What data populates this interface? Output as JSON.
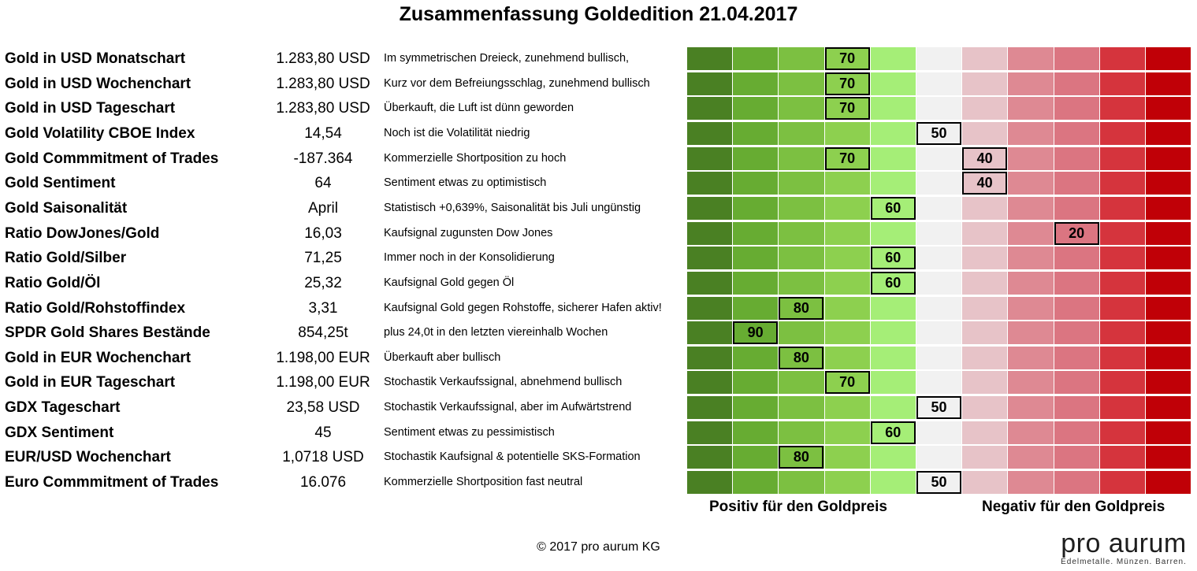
{
  "title": "Zusammenfassung Goldedition 21.04.2017",
  "colors": {
    "scale": [
      "#4a8023",
      "#67ac32",
      "#7cc041",
      "#8dd04f",
      "#a5ee77",
      "#f1f1f1",
      "#e7c3c8",
      "#de8993",
      "#db7581",
      "#d5343d",
      "#c00007"
    ]
  },
  "scale_levels": [
    100,
    90,
    80,
    70,
    60,
    50,
    40,
    30,
    20,
    10,
    0
  ],
  "chart_data": {
    "type": "table",
    "rows": [
      {
        "label": "Gold in USD Monatschart",
        "value": "1.283,80 USD",
        "comment": "Im symmetrischen Dreieck, zunehmend bullisch,",
        "scores": [
          70
        ]
      },
      {
        "label": "Gold in USD Wochenchart",
        "value": "1.283,80 USD",
        "comment": "Kurz vor dem Befreiungsschlag, zunehmend bullisch",
        "scores": [
          70
        ]
      },
      {
        "label": "Gold in USD Tageschart",
        "value": "1.283,80 USD",
        "comment": "Überkauft, die Luft ist dünn geworden",
        "scores": [
          70
        ]
      },
      {
        "label": "Gold Volatility CBOE Index",
        "value": "14,54",
        "comment": "Noch ist die Volatilität niedrig",
        "scores": [
          50
        ]
      },
      {
        "label": "Gold Commmitment of Trades",
        "value": "-187.364",
        "comment": "Kommerzielle Shortposition zu hoch",
        "scores": [
          70,
          40
        ]
      },
      {
        "label": "Gold Sentiment",
        "value": "64",
        "comment": "Sentiment etwas zu optimistisch",
        "scores": [
          40
        ]
      },
      {
        "label": "Gold Saisonalität",
        "value": "April",
        "comment": "Statistisch +0,639%, Saisonalität bis Juli ungünstig",
        "scores": [
          60
        ]
      },
      {
        "label": "Ratio DowJones/Gold",
        "value": "16,03",
        "comment": "Kaufsignal zugunsten Dow Jones",
        "scores": [
          20
        ]
      },
      {
        "label": "Ratio Gold/Silber",
        "value": "71,25",
        "comment": "Immer noch in der Konsolidierung",
        "scores": [
          60
        ]
      },
      {
        "label": "Ratio Gold/Öl",
        "value": "25,32",
        "comment": "Kaufsignal Gold gegen Öl",
        "scores": [
          60
        ]
      },
      {
        "label": "Ratio Gold/Rohstoffindex",
        "value": "3,31",
        "comment": "Kaufsignal Gold gegen Rohstoffe, sicherer Hafen aktiv!",
        "scores": [
          80
        ]
      },
      {
        "label": "SPDR Gold Shares Bestände",
        "value": "854,25t",
        "comment": "plus 24,0t in den letzten viereinhalb Wochen",
        "scores": [
          90
        ]
      },
      {
        "label": "Gold in EUR Wochenchart",
        "value": "1.198,00 EUR",
        "comment": "Überkauft aber bullisch",
        "scores": [
          80
        ]
      },
      {
        "label": "Gold in EUR Tageschart",
        "value": "1.198,00 EUR",
        "comment": "Stochastik Verkaufssignal, abnehmend bullisch",
        "scores": [
          70
        ]
      },
      {
        "label": "GDX Tageschart",
        "value": "23,58 USD",
        "comment": "Stochastik Verkaufssignal, aber im Aufwärtstrend",
        "scores": [
          50
        ]
      },
      {
        "label": "GDX Sentiment",
        "value": "45",
        "comment": "Sentiment etwas zu pessimistisch",
        "scores": [
          60
        ]
      },
      {
        "label": "EUR/USD Wochenchart",
        "value": "1,0718 USD",
        "comment": "Stochastik Kaufsignal & potentielle SKS-Formation",
        "scores": [
          80
        ]
      },
      {
        "label": "Euro Commmitment of Trades",
        "value": "16.076",
        "comment": "Kommerzielle Shortposition fast neutral",
        "scores": [
          50
        ]
      }
    ]
  },
  "legend": {
    "positive": "Positiv für den Goldpreis",
    "negative": "Negativ für den Goldpreis"
  },
  "footer": {
    "copyright": "© 2017 pro aurum KG",
    "logo_text": "pro aurum",
    "logo_tagline": "Edelmetalle. Münzen. Barren."
  }
}
